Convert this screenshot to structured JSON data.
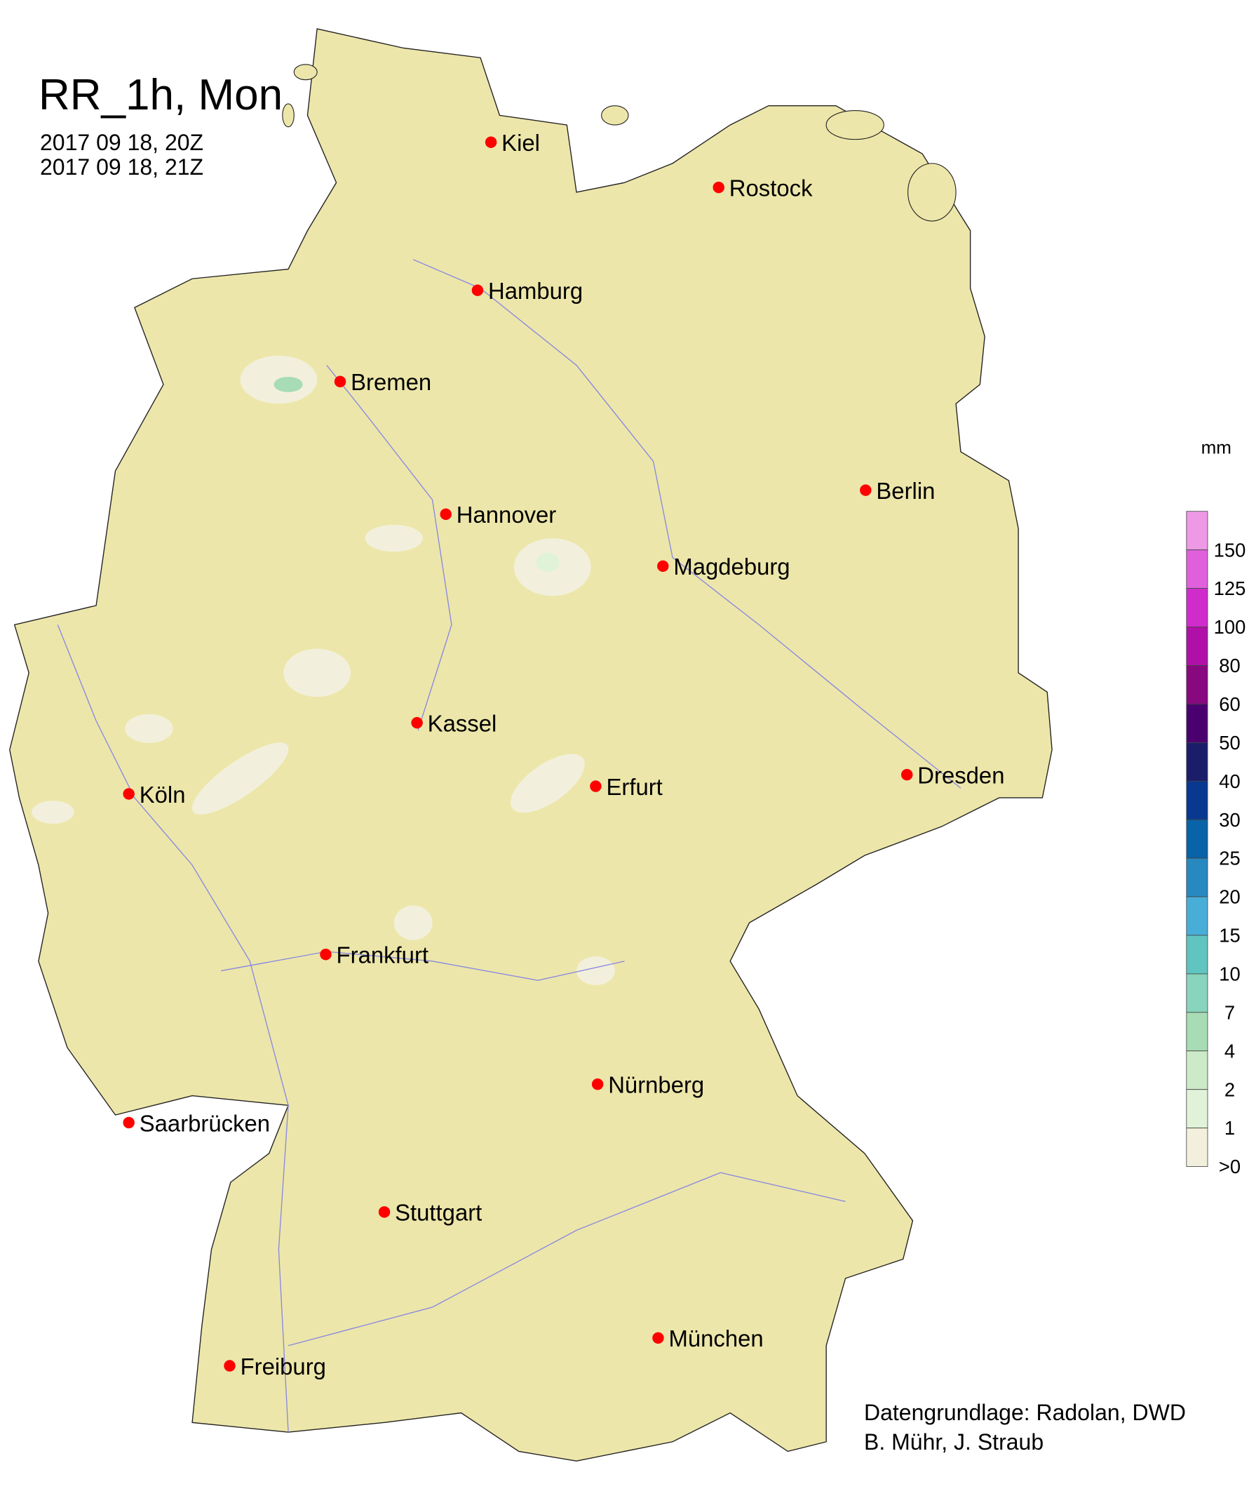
{
  "header": {
    "title": "RR_1h, Mon",
    "period_start": "2017 09 18, 20Z",
    "period_end": "2017 09 18, 21Z"
  },
  "legend": {
    "unit": "mm",
    "labels": [
      "150",
      "125",
      "100",
      "80",
      "60",
      "50",
      "40",
      "30",
      "25",
      "20",
      "15",
      "10",
      "7",
      "4",
      "2",
      "1",
      ">0"
    ],
    "colors": [
      "#ee99e6",
      "#e060dc",
      "#d02ccc",
      "#b010a8",
      "#880880",
      "#4b0070",
      "#1a1e6a",
      "#083890",
      "#0863a8",
      "#2888c0",
      "#48aed8",
      "#60c4c0",
      "#88d4bc",
      "#a8dcb4",
      "#cceac8",
      "#e0f2d8",
      "#f2f0dc"
    ]
  },
  "map": {
    "land_color": "#ede6aa",
    "city_marker_color": "#ff0000",
    "cities": [
      "Kiel",
      "Rostock",
      "Hamburg",
      "Bremen",
      "Berlin",
      "Hannover",
      "Magdeburg",
      "Kassel",
      "Köln",
      "Erfurt",
      "Dresden",
      "Frankfurt",
      "Nürnberg",
      "Saarbrücken",
      "Stuttgart",
      "München",
      "Freiburg"
    ]
  },
  "credits": {
    "line1": "Datengrundlage: Radolan, DWD",
    "line2": "B. Mühr, J. Straub"
  }
}
